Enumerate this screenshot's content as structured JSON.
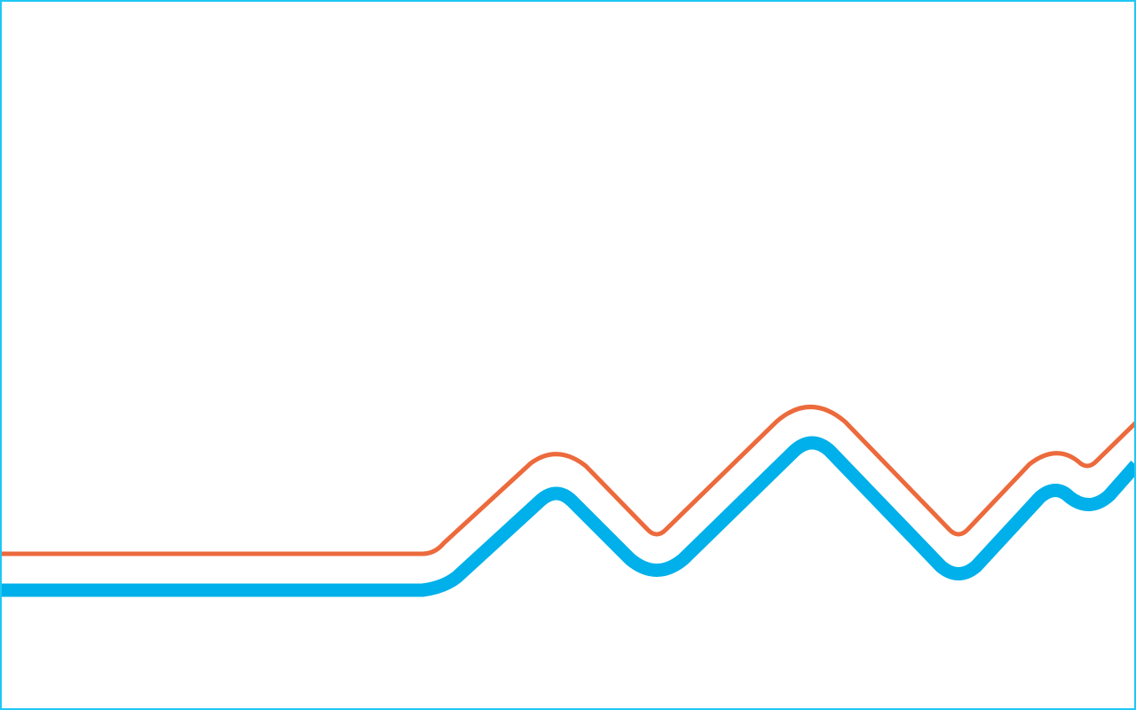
{
  "colors": {
    "frame": "#1ec8f5",
    "upper_line": "#ec6a3c",
    "lower_line": "#00b0ea"
  }
}
